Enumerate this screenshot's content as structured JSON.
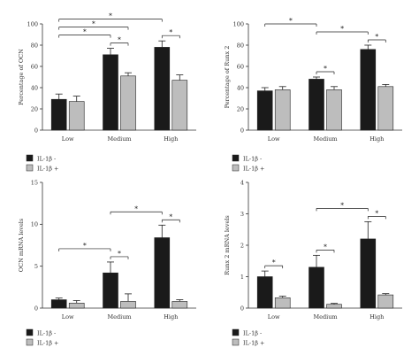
{
  "chart_data": [
    {
      "type": "bar",
      "categories": [
        "Low",
        "Medium",
        "High"
      ],
      "ylabel": "Percentage of OCN",
      "ylim": [
        0,
        100
      ],
      "yticks": [
        0,
        20,
        40,
        60,
        80,
        100
      ],
      "series": [
        {
          "name": "IL-1β -",
          "values": [
            29,
            71,
            78
          ],
          "errors": [
            5,
            6,
            6
          ]
        },
        {
          "name": "IL-1β +",
          "values": [
            27,
            51,
            47
          ],
          "errors": [
            5,
            3,
            5
          ]
        }
      ],
      "significance": [
        {
          "from": [
            0,
            0
          ],
          "to": [
            1,
            0
          ],
          "label": "*"
        },
        {
          "from": [
            0,
            0
          ],
          "to": [
            1,
            1
          ],
          "label": "*"
        },
        {
          "from": [
            0,
            0
          ],
          "to": [
            2,
            0
          ],
          "label": "*"
        },
        {
          "from": [
            1,
            0
          ],
          "to": [
            1,
            1
          ],
          "label": "*"
        },
        {
          "from": [
            2,
            0
          ],
          "to": [
            2,
            1
          ],
          "label": "*"
        }
      ]
    },
    {
      "type": "bar",
      "categories": [
        "Low",
        "Medium",
        "High"
      ],
      "ylabel": "Percentage of Runx 2",
      "ylim": [
        0,
        100
      ],
      "yticks": [
        0,
        20,
        40,
        60,
        80,
        100
      ],
      "series": [
        {
          "name": "IL-1β -",
          "values": [
            37,
            48,
            76
          ],
          "errors": [
            3,
            2,
            4
          ]
        },
        {
          "name": "IL-1β +",
          "values": [
            38,
            38,
            41
          ],
          "errors": [
            3,
            3,
            2
          ]
        }
      ],
      "significance": [
        {
          "from": [
            0,
            0
          ],
          "to": [
            1,
            0
          ],
          "label": "*"
        },
        {
          "from": [
            1,
            0
          ],
          "to": [
            1,
            1
          ],
          "label": "*"
        },
        {
          "from": [
            1,
            0
          ],
          "to": [
            2,
            0
          ],
          "label": "*"
        },
        {
          "from": [
            2,
            0
          ],
          "to": [
            2,
            1
          ],
          "label": "*"
        }
      ]
    },
    {
      "type": "bar",
      "categories": [
        "Low",
        "Medium",
        "High"
      ],
      "ylabel": "OCN mRNA levels",
      "ylim": [
        0,
        15
      ],
      "yticks": [
        0,
        5,
        10,
        15
      ],
      "series": [
        {
          "name": "IL-1β -",
          "values": [
            1.0,
            4.2,
            8.4
          ],
          "errors": [
            0.2,
            1.3,
            1.5
          ]
        },
        {
          "name": "IL-1β +",
          "values": [
            0.6,
            0.8,
            0.8
          ],
          "errors": [
            0.3,
            0.9,
            0.2
          ]
        }
      ],
      "significance": [
        {
          "from": [
            0,
            0
          ],
          "to": [
            1,
            0
          ],
          "label": "*"
        },
        {
          "from": [
            1,
            0
          ],
          "to": [
            1,
            1
          ],
          "label": "*"
        },
        {
          "from": [
            1,
            0
          ],
          "to": [
            2,
            0
          ],
          "label": "*"
        },
        {
          "from": [
            2,
            0
          ],
          "to": [
            2,
            1
          ],
          "label": "*"
        }
      ]
    },
    {
      "type": "bar",
      "categories": [
        "Low",
        "Medium",
        "High"
      ],
      "ylabel": "Runx 2 mRNA levels",
      "ylim": [
        0,
        4
      ],
      "yticks": [
        0,
        1,
        2,
        3,
        4
      ],
      "series": [
        {
          "name": "IL-1β -",
          "values": [
            1.0,
            1.3,
            2.2
          ],
          "errors": [
            0.18,
            0.38,
            0.55
          ]
        },
        {
          "name": "IL-1β +",
          "values": [
            0.33,
            0.12,
            0.42
          ],
          "errors": [
            0.05,
            0.03,
            0.04
          ]
        }
      ],
      "significance": [
        {
          "from": [
            0,
            0
          ],
          "to": [
            0,
            1
          ],
          "label": "*"
        },
        {
          "from": [
            1,
            0
          ],
          "to": [
            1,
            1
          ],
          "label": "*"
        },
        {
          "from": [
            1,
            0
          ],
          "to": [
            2,
            0
          ],
          "label": "*"
        },
        {
          "from": [
            2,
            0
          ],
          "to": [
            2,
            1
          ],
          "label": "*"
        }
      ]
    }
  ],
  "legend": {
    "placement": "bottom-left",
    "items": [
      {
        "label": "IL-1β -",
        "color": "#1a1a1a"
      },
      {
        "label": "IL-1β +",
        "color": "#bdbdbd"
      }
    ]
  },
  "colors": {
    "series": [
      "#1a1a1a",
      "#bdbdbd"
    ],
    "axis": "#333333"
  }
}
